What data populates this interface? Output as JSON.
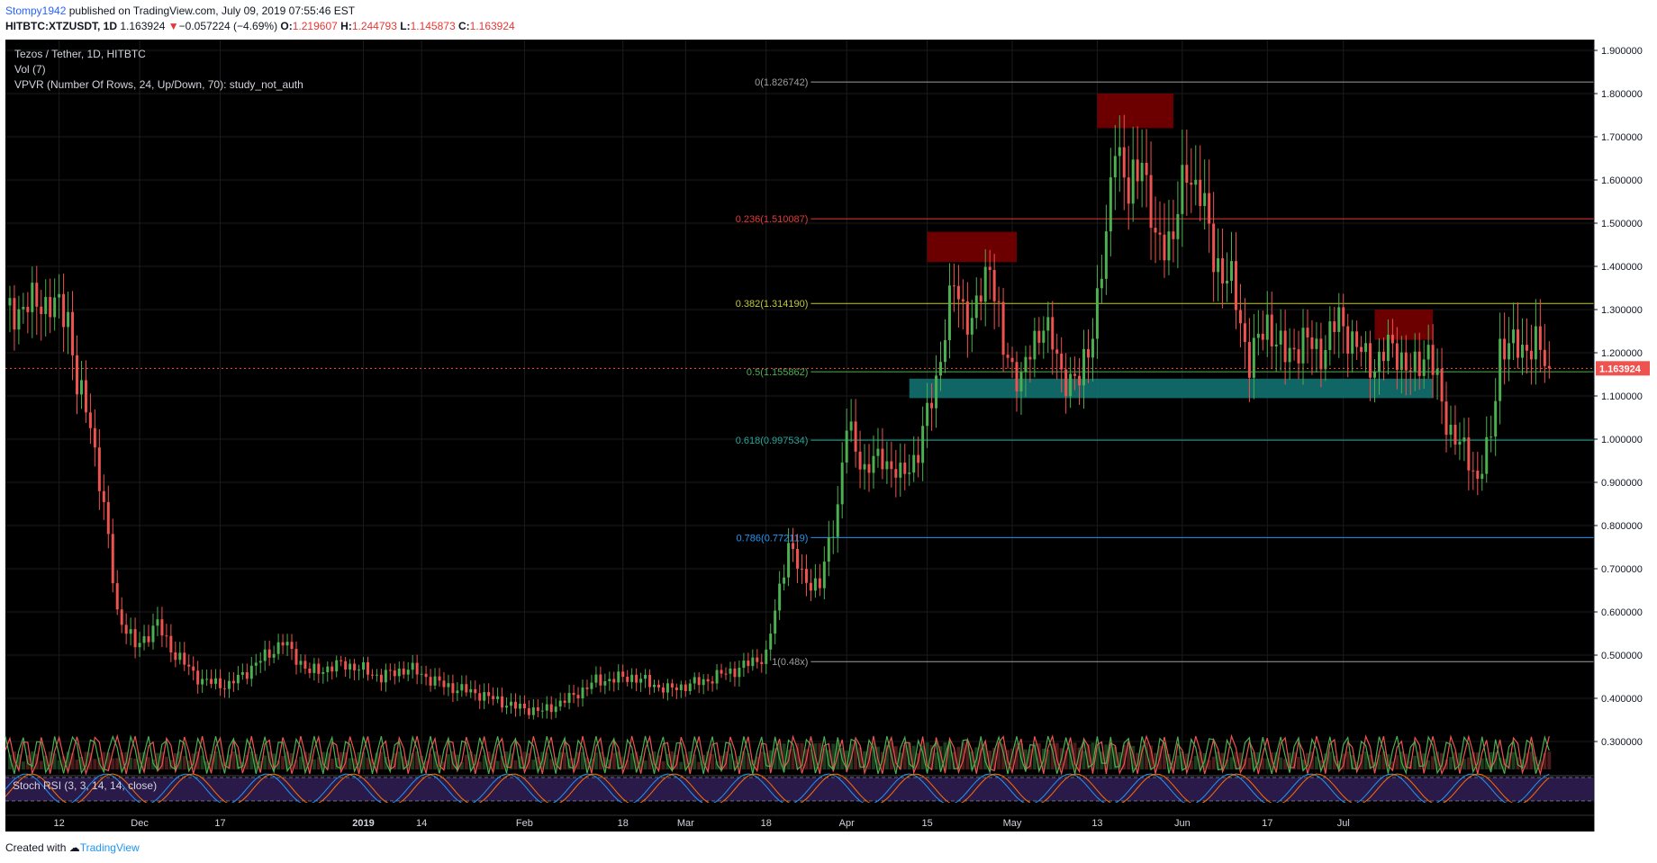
{
  "header": {
    "author": "Stompy1942",
    "published": " published on TradingView.com, July 09, 2019 07:55:46 EST",
    "symbol": "HITBTC:XTZUSDT, 1D",
    "last": "1.163924",
    "change_arrow": "▼",
    "change": "−0.057224 (−4.69%)",
    "o_label": "O:",
    "o": "1.219607",
    "h_label": "H:",
    "h": "1.244793",
    "l_label": "L:",
    "l": "1.145873",
    "c_label": "C:",
    "c": "1.163924"
  },
  "legend": {
    "title": "Tezos / Tether, 1D, HITBTC",
    "vol": "Vol (7)",
    "vpvr": "VPVR (Number Of Rows, 24, Up/Down, 70): study_not_auth"
  },
  "stoch": {
    "label": "Stoch RSI (3, 3, 14, 14, close)",
    "levels": [
      "100.00",
      "0.00"
    ]
  },
  "footer": {
    "created": "Created with",
    "brand": "TradingView"
  },
  "colors": {
    "background": "#000000",
    "up": "#4caf50",
    "down": "#ef5350",
    "fib_0": "#9e9e9e",
    "fib_236": "#e53935",
    "fib_382": "#c0ca33",
    "fib_5": "#4caf50",
    "fib_618": "#26a69a",
    "fib_786": "#2196f3",
    "resistance_zone": "#7f0000",
    "support_zone": "#127070",
    "stoch_fill": "#2a1a4a"
  },
  "chart_data": {
    "type": "candlestick",
    "title": "Tezos / Tether, 1D, HITBTC",
    "y_ticks": [
      "1.900000",
      "1.800000",
      "1.700000",
      "1.600000",
      "1.500000",
      "1.400000",
      "1.300000",
      "1.200000",
      "1.100000",
      "1.000000",
      "0.900000",
      "0.800000",
      "0.700000",
      "0.600000",
      "0.500000",
      "0.400000",
      "0.300000"
    ],
    "ylim": [
      0.225,
      1.925
    ],
    "x_ticks": [
      "12",
      "Dec",
      "17",
      "2019",
      "14",
      "Feb",
      "18",
      "Mar",
      "18",
      "Apr",
      "15",
      "May",
      "13",
      "Jun",
      "17",
      "Jul"
    ],
    "x_tick_days": [
      12,
      30,
      48,
      80,
      93,
      116,
      138,
      152,
      170,
      188,
      206,
      225,
      244,
      263,
      282,
      299
    ],
    "last_price_label": "1.163924",
    "fib_levels": [
      {
        "label": "0(1.826742)",
        "value": 1.826742,
        "key": "fib_0"
      },
      {
        "label": "0.236(1.510087)",
        "value": 1.510087,
        "key": "fib_236"
      },
      {
        "label": "0.382(1.314190)",
        "value": 1.31419,
        "key": "fib_382"
      },
      {
        "label": "0.5(1.155862)",
        "value": 1.155862,
        "key": "fib_5"
      },
      {
        "label": "0.618(0.997534)",
        "value": 0.997534,
        "key": "fib_618"
      },
      {
        "label": "0.786(0.772119)",
        "value": 0.772119,
        "key": "fib_786"
      },
      {
        "label": "1(0.48x)",
        "value": 0.485,
        "key": "fib_0"
      }
    ],
    "zones": [
      {
        "name": "resistance-zone-apr",
        "d0": 206,
        "d1": 226,
        "y0": 1.41,
        "y1": 1.48,
        "kind": "resistance"
      },
      {
        "name": "resistance-zone-may",
        "d0": 244,
        "d1": 261,
        "y0": 1.72,
        "y1": 1.8,
        "kind": "resistance"
      },
      {
        "name": "resistance-zone-jul",
        "d0": 306,
        "d1": 319,
        "y0": 1.23,
        "y1": 1.3,
        "kind": "resistance"
      },
      {
        "name": "support-zone",
        "d0": 202,
        "d1": 319,
        "y0": 1.095,
        "y1": 1.14,
        "kind": "support"
      }
    ],
    "key_closes": [
      {
        "day": 0,
        "close": 1.29
      },
      {
        "day": 8,
        "close": 1.32
      },
      {
        "day": 14,
        "close": 1.29
      },
      {
        "day": 16,
        "close": 1.12
      },
      {
        "day": 19,
        "close": 1.04
      },
      {
        "day": 22,
        "close": 0.84
      },
      {
        "day": 25,
        "close": 0.6
      },
      {
        "day": 29,
        "close": 0.52
      },
      {
        "day": 34,
        "close": 0.57
      },
      {
        "day": 38,
        "close": 0.5
      },
      {
        "day": 44,
        "close": 0.44
      },
      {
        "day": 50,
        "close": 0.43
      },
      {
        "day": 56,
        "close": 0.48
      },
      {
        "day": 62,
        "close": 0.53
      },
      {
        "day": 68,
        "close": 0.46
      },
      {
        "day": 76,
        "close": 0.48
      },
      {
        "day": 84,
        "close": 0.45
      },
      {
        "day": 90,
        "close": 0.47
      },
      {
        "day": 98,
        "close": 0.43
      },
      {
        "day": 106,
        "close": 0.41
      },
      {
        "day": 114,
        "close": 0.38
      },
      {
        "day": 120,
        "close": 0.37
      },
      {
        "day": 126,
        "close": 0.4
      },
      {
        "day": 132,
        "close": 0.44
      },
      {
        "day": 140,
        "close": 0.45
      },
      {
        "day": 148,
        "close": 0.42
      },
      {
        "day": 156,
        "close": 0.44
      },
      {
        "day": 164,
        "close": 0.47
      },
      {
        "day": 170,
        "close": 0.5
      },
      {
        "day": 172,
        "close": 0.6
      },
      {
        "day": 175,
        "close": 0.76
      },
      {
        "day": 178,
        "close": 0.68
      },
      {
        "day": 182,
        "close": 0.66
      },
      {
        "day": 186,
        "close": 0.85
      },
      {
        "day": 188,
        "close": 1.03
      },
      {
        "day": 192,
        "close": 0.93
      },
      {
        "day": 196,
        "close": 0.96
      },
      {
        "day": 200,
        "close": 0.91
      },
      {
        "day": 204,
        "close": 0.97
      },
      {
        "day": 208,
        "close": 1.14
      },
      {
        "day": 212,
        "close": 1.36
      },
      {
        "day": 216,
        "close": 1.26
      },
      {
        "day": 220,
        "close": 1.42
      },
      {
        "day": 223,
        "close": 1.2
      },
      {
        "day": 227,
        "close": 1.14
      },
      {
        "day": 232,
        "close": 1.28
      },
      {
        "day": 236,
        "close": 1.15
      },
      {
        "day": 240,
        "close": 1.13
      },
      {
        "day": 243,
        "close": 1.26
      },
      {
        "day": 246,
        "close": 1.45
      },
      {
        "day": 248,
        "close": 1.72
      },
      {
        "day": 251,
        "close": 1.55
      },
      {
        "day": 254,
        "close": 1.67
      },
      {
        "day": 257,
        "close": 1.44
      },
      {
        "day": 261,
        "close": 1.48
      },
      {
        "day": 264,
        "close": 1.62
      },
      {
        "day": 267,
        "close": 1.58
      },
      {
        "day": 270,
        "close": 1.42
      },
      {
        "day": 274,
        "close": 1.36
      },
      {
        "day": 278,
        "close": 1.18
      },
      {
        "day": 282,
        "close": 1.27
      },
      {
        "day": 286,
        "close": 1.19
      },
      {
        "day": 290,
        "close": 1.23
      },
      {
        "day": 294,
        "close": 1.2
      },
      {
        "day": 298,
        "close": 1.28
      },
      {
        "day": 302,
        "close": 1.21
      },
      {
        "day": 306,
        "close": 1.17
      },
      {
        "day": 310,
        "close": 1.22
      },
      {
        "day": 314,
        "close": 1.15
      },
      {
        "day": 318,
        "close": 1.21
      },
      {
        "day": 322,
        "close": 1.04
      },
      {
        "day": 326,
        "close": 0.97
      },
      {
        "day": 329,
        "close": 0.91
      },
      {
        "day": 332,
        "close": 1.0
      },
      {
        "day": 334,
        "close": 1.22
      },
      {
        "day": 338,
        "close": 1.21
      },
      {
        "day": 342,
        "close": 1.22
      },
      {
        "day": 345,
        "close": 1.16
      }
    ]
  }
}
